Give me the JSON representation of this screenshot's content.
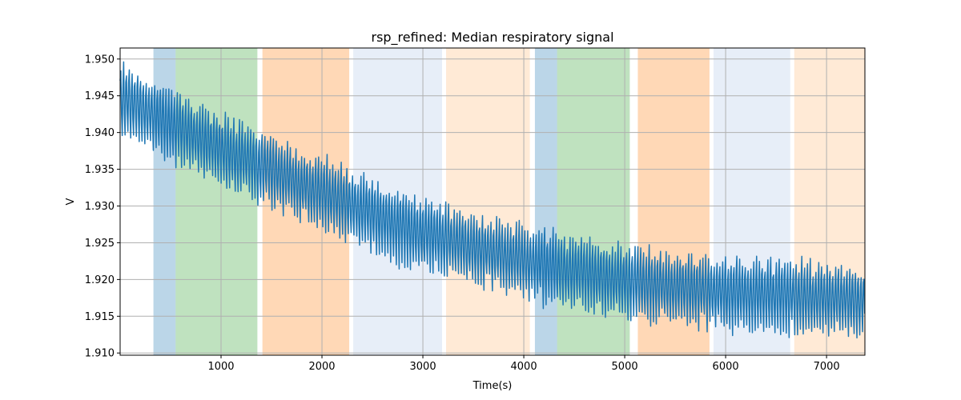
{
  "chart_data": {
    "type": "line",
    "title": "rsp_refined: Median respiratory signal",
    "xlabel": "Time(s)",
    "ylabel": "V",
    "xlim": [
      0,
      7380
    ],
    "ylim": [
      1.9097,
      1.9515
    ],
    "xticks": [
      1000,
      2000,
      3000,
      4000,
      5000,
      6000,
      7000
    ],
    "xtick_labels": [
      "1000",
      "2000",
      "3000",
      "4000",
      "5000",
      "6000",
      "7000"
    ],
    "yticks": [
      1.91,
      1.915,
      1.92,
      1.925,
      1.93,
      1.935,
      1.94,
      1.945,
      1.95
    ],
    "ytick_labels": [
      "1.910",
      "1.915",
      "1.920",
      "1.925",
      "1.930",
      "1.935",
      "1.940",
      "1.945",
      "1.950"
    ],
    "grid": true,
    "shaded_regions": [
      {
        "x0": 330,
        "x1": 550,
        "color": "#1f77b4",
        "alpha": 0.3
      },
      {
        "x0": 550,
        "x1": 1360,
        "color": "#2ca02c",
        "alpha": 0.3
      },
      {
        "x0": 1410,
        "x1": 2270,
        "color": "#ff7f0e",
        "alpha": 0.3
      },
      {
        "x0": 2310,
        "x1": 3190,
        "color": "#aec7e8",
        "alpha": 0.3
      },
      {
        "x0": 3230,
        "x1": 4060,
        "color": "#ffbb78",
        "alpha": 0.3
      },
      {
        "x0": 4110,
        "x1": 4330,
        "color": "#1f77b4",
        "alpha": 0.3
      },
      {
        "x0": 4330,
        "x1": 5050,
        "color": "#2ca02c",
        "alpha": 0.3
      },
      {
        "x0": 5130,
        "x1": 5840,
        "color": "#ff7f0e",
        "alpha": 0.3
      },
      {
        "x0": 5880,
        "x1": 6640,
        "color": "#aec7e8",
        "alpha": 0.3
      },
      {
        "x0": 6680,
        "x1": 7380,
        "color": "#ffbb78",
        "alpha": 0.3
      }
    ],
    "series": [
      {
        "color": "#1f77b4",
        "trend_points": [
          {
            "x": 0,
            "y": 1.9445
          },
          {
            "x": 1000,
            "y": 1.9375
          },
          {
            "x": 2000,
            "y": 1.9315
          },
          {
            "x": 3000,
            "y": 1.926
          },
          {
            "x": 4000,
            "y": 1.9222
          },
          {
            "x": 5000,
            "y": 1.9195
          },
          {
            "x": 6000,
            "y": 1.918
          },
          {
            "x": 7380,
            "y": 1.917
          }
        ],
        "breath_period_s": 28,
        "amplitude_half": 0.0045
      }
    ]
  }
}
